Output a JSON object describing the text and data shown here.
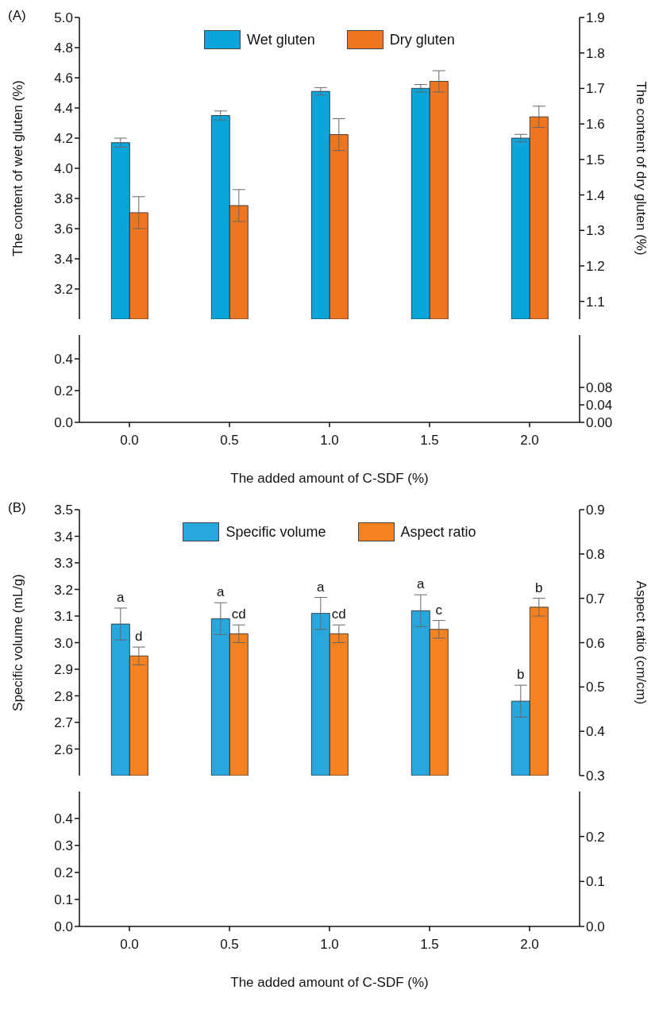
{
  "chart_data": [
    {
      "type": "bar",
      "annotations": [
        "(A)"
      ],
      "categories": [
        "0.0",
        "0.5",
        "1.0",
        "1.5",
        "2.0"
      ],
      "series": [
        {
          "name": "Wet gluten",
          "color": "#0aa5dd",
          "values": [
            4.17,
            4.35,
            4.51,
            4.53,
            4.2
          ],
          "errors": [
            0.03,
            0.03,
            0.025,
            0.025,
            0.025
          ]
        },
        {
          "name": "Dry gluten",
          "color": "#f07521",
          "axis": "y2",
          "values": [
            1.35,
            1.37,
            1.57,
            1.72,
            1.62
          ],
          "errors": [
            0.045,
            0.045,
            0.045,
            0.03,
            0.03
          ]
        }
      ],
      "ylabel": "The content of wet gluten (%)",
      "y2label": "The content of dry gluten (%)",
      "ylim": [
        3.0,
        5.0
      ],
      "yticks": [
        3.2,
        3.4,
        3.6,
        3.8,
        {
          "value": 4,
          "label": "4.0"
        },
        4.2,
        4.4,
        4.6,
        4.8,
        {
          "value": 5,
          "label": "5.0"
        }
      ],
      "y2lim": [
        1.05,
        1.9
      ],
      "y2ticks": [
        1.1,
        1.2,
        1.3,
        1.4,
        1.5,
        1.6,
        1.7,
        1.8,
        1.9
      ],
      "legend": "top",
      "tick_labels": "y"
    },
    {
      "type": "bar",
      "categories": [
        "0.0",
        "0.5",
        "1.0",
        "1.5",
        "2.0"
      ],
      "xlabel": "The added amount of C-SDF (%)",
      "ylim": [
        0,
        0.55
      ],
      "yticks": [
        {
          "value": 0,
          "label": "0.0"
        },
        0.2,
        0.4
      ],
      "y2lim": [
        0,
        0.2
      ],
      "y2ticks": [
        {
          "value": 0,
          "label": "0.00"
        },
        0.04,
        0.08
      ]
    },
    {
      "type": "bar",
      "annotations": [
        "(B)"
      ],
      "categories": [
        "0.0",
        "0.5",
        "1.0",
        "1.5",
        "2.0"
      ],
      "series": [
        {
          "name": "Specific volume",
          "color": "#26a8df",
          "values": [
            3.07,
            3.09,
            3.11,
            3.12,
            2.78
          ],
          "errors": [
            0.06,
            0.06,
            0.06,
            0.06,
            0.06
          ],
          "value_labels": [
            "a",
            "a",
            "a",
            "a",
            "b"
          ]
        },
        {
          "name": "Aspect ratio",
          "color": "#f58220",
          "axis": "y2",
          "values": [
            0.57,
            0.62,
            0.62,
            0.63,
            0.68
          ],
          "errors": [
            0.02,
            0.02,
            0.02,
            0.02,
            0.02
          ],
          "value_labels": [
            "d",
            "cd",
            "cd",
            "c",
            "b"
          ]
        }
      ],
      "ylabel": "Specific volume (mL/g)",
      "y2label": "Aspect ratio (cm/cm)",
      "ylim": [
        2.5,
        3.5
      ],
      "yticks": [
        2.6,
        2.7,
        2.8,
        2.9,
        {
          "value": 3,
          "label": "3.0"
        },
        3.1,
        3.2,
        3.3,
        3.4,
        3.5
      ],
      "y2lim": [
        0.3,
        0.9
      ],
      "y2ticks": [
        0.3,
        0.4,
        0.5,
        0.6,
        0.7,
        0.8,
        0.9
      ],
      "legend": "top",
      "tick_labels": "y"
    },
    {
      "type": "bar",
      "categories": [
        "0.0",
        "0.5",
        "1.0",
        "1.5",
        "2.0"
      ],
      "xlabel": "The added amount of C-SDF (%)",
      "ylim": [
        0,
        0.5
      ],
      "yticks": [
        {
          "value": 0,
          "label": "0.0"
        },
        0.1,
        0.2,
        0.3,
        0.4
      ],
      "y2lim": [
        0,
        0.3
      ],
      "y2ticks": [
        {
          "value": 0,
          "label": "0.0"
        },
        0.1,
        0.2
      ]
    }
  ]
}
